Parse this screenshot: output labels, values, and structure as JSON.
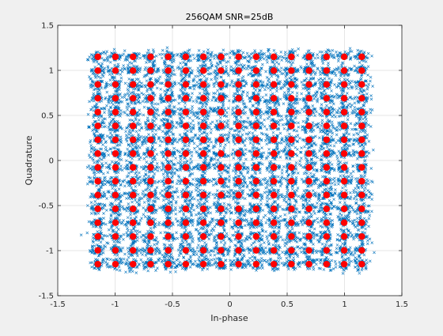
{
  "chart_data": {
    "type": "scatter",
    "title": "256QAM SNR=25dB",
    "xlabel": "In-phase",
    "ylabel": "Quadrature",
    "xlim": [
      -1.5,
      1.5
    ],
    "ylim": [
      -1.5,
      1.5
    ],
    "xticks": [
      -1.5,
      -1,
      -0.5,
      0,
      0.5,
      1,
      1.5
    ],
    "yticks": [
      -1.5,
      -1,
      -0.5,
      0,
      0.5,
      1,
      1.5
    ],
    "xtick_labels": [
      "-1.5",
      "-1",
      "-0.5",
      "0",
      "0.5",
      "1",
      "1.5"
    ],
    "ytick_labels": [
      "-1.5",
      "-1",
      "-0.5",
      "0",
      "0.5",
      "1",
      "1.5"
    ],
    "grid": true,
    "series": [
      {
        "role": "received-samples",
        "marker": "x",
        "color": "#0072bd",
        "constellation_levels": [
          -15,
          -13,
          -11,
          -9,
          -7,
          -5,
          -3,
          -1,
          1,
          3,
          5,
          7,
          9,
          11,
          13,
          15
        ],
        "level_scale": 0.0767,
        "noise_spread": 0.036,
        "samples_per_point": 40
      },
      {
        "role": "ideal-constellation",
        "marker": "o",
        "color": "#ff0000",
        "constellation_levels": [
          -15,
          -13,
          -11,
          -9,
          -7,
          -5,
          -3,
          -1,
          1,
          3,
          5,
          7,
          9,
          11,
          13,
          15
        ],
        "level_scale": 0.0767
      }
    ]
  }
}
